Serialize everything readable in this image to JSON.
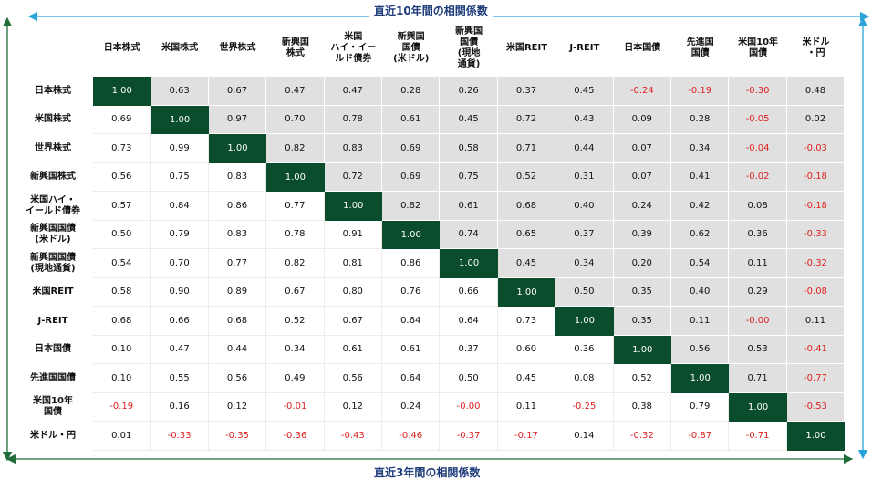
{
  "titles": {
    "top": "直近10年間の相関係数",
    "bottom": "直近3年間の相関係数"
  },
  "colors": {
    "diagonal": "#0a4d2c",
    "upper_bg": "#e0e0e0",
    "negative": "#e02020",
    "arrow": "#2aa4d8",
    "arrow_left": "#1f6b3a",
    "title": "#1f3d7a"
  },
  "chart_data": {
    "type": "heatmap",
    "title_upper_triangle": "直近10年間の相関係数",
    "title_lower_triangle": "直近3年間の相関係数",
    "columns": [
      "日本株式",
      "米国株式",
      "世界株式",
      "新興国\n株式",
      "米国\nハイ・イー\nルド債券",
      "新興国\n国債\n(米ドル)",
      "新興国\n国債\n(現地\n通貨)",
      "米国REIT",
      "J-REIT",
      "日本国債",
      "先進国\n国債",
      "米国10年\n国債",
      "米ドル\n・円"
    ],
    "rows": [
      "日本株式",
      "米国株式",
      "世界株式",
      "新興国株式",
      "米国ハイ・\nイールド債券",
      "新興国国債\n(米ドル)",
      "新興国国債\n(現地通貨)",
      "米国REIT",
      "J-REIT",
      "日本国債",
      "先進国国債",
      "米国10年\n国債",
      "米ドル・円"
    ],
    "matrix": [
      [
        "1.00",
        "0.63",
        "0.67",
        "0.47",
        "0.47",
        "0.28",
        "0.26",
        "0.37",
        "0.45",
        "-0.24",
        "-0.19",
        "-0.30",
        "0.48"
      ],
      [
        "0.69",
        "1.00",
        "0.97",
        "0.70",
        "0.78",
        "0.61",
        "0.45",
        "0.72",
        "0.43",
        "0.09",
        "0.28",
        "-0.05",
        "0.02"
      ],
      [
        "0.73",
        "0.99",
        "1.00",
        "0.82",
        "0.83",
        "0.69",
        "0.58",
        "0.71",
        "0.44",
        "0.07",
        "0.34",
        "-0.04",
        "-0.03"
      ],
      [
        "0.56",
        "0.75",
        "0.83",
        "1.00",
        "0.72",
        "0.69",
        "0.75",
        "0.52",
        "0.31",
        "0.07",
        "0.41",
        "-0.02",
        "-0.18"
      ],
      [
        "0.57",
        "0.84",
        "0.86",
        "0.77",
        "1.00",
        "0.82",
        "0.61",
        "0.68",
        "0.40",
        "0.24",
        "0.42",
        "0.08",
        "-0.18"
      ],
      [
        "0.50",
        "0.79",
        "0.83",
        "0.78",
        "0.91",
        "1.00",
        "0.74",
        "0.65",
        "0.37",
        "0.39",
        "0.62",
        "0.36",
        "-0.33"
      ],
      [
        "0.54",
        "0.70",
        "0.77",
        "0.82",
        "0.81",
        "0.86",
        "1.00",
        "0.45",
        "0.34",
        "0.20",
        "0.54",
        "0.11",
        "-0.32"
      ],
      [
        "0.58",
        "0.90",
        "0.89",
        "0.67",
        "0.80",
        "0.76",
        "0.66",
        "1.00",
        "0.50",
        "0.35",
        "0.40",
        "0.29",
        "-0.08"
      ],
      [
        "0.68",
        "0.66",
        "0.68",
        "0.52",
        "0.67",
        "0.64",
        "0.64",
        "0.73",
        "1.00",
        "0.35",
        "0.11",
        "-0.00",
        "0.11"
      ],
      [
        "0.10",
        "0.47",
        "0.44",
        "0.34",
        "0.61",
        "0.61",
        "0.37",
        "0.60",
        "0.36",
        "1.00",
        "0.56",
        "0.53",
        "-0.41"
      ],
      [
        "0.10",
        "0.55",
        "0.56",
        "0.49",
        "0.56",
        "0.64",
        "0.50",
        "0.45",
        "0.08",
        "0.52",
        "1.00",
        "0.71",
        "-0.77"
      ],
      [
        "-0.19",
        "0.16",
        "0.12",
        "-0.01",
        "0.12",
        "0.24",
        "-0.00",
        "0.11",
        "-0.25",
        "0.38",
        "0.79",
        "1.00",
        "-0.53"
      ],
      [
        "0.01",
        "-0.33",
        "-0.35",
        "-0.36",
        "-0.43",
        "-0.46",
        "-0.37",
        "-0.17",
        "0.14",
        "-0.32",
        "-0.87",
        "-0.71",
        "1.00"
      ]
    ]
  }
}
